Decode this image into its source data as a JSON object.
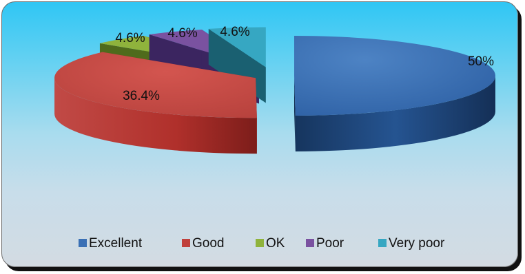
{
  "chart_data": {
    "type": "pie",
    "categories": [
      "Excellent",
      "Good",
      "OK",
      "Poor",
      "Very poor"
    ],
    "values": [
      50,
      36.4,
      4.6,
      4.6,
      4.6
    ],
    "labels": [
      "50%",
      "36.4%",
      "4.6%",
      "4.6%",
      "4.6%"
    ],
    "colors": {
      "Excellent": "#3a70b5",
      "Good": "#c0403c",
      "OK": "#8fb33c",
      "Poor": "#7a52a0",
      "Very poor": "#36a7c2"
    },
    "three_d": true,
    "exploded": true,
    "legend_position": "bottom"
  }
}
